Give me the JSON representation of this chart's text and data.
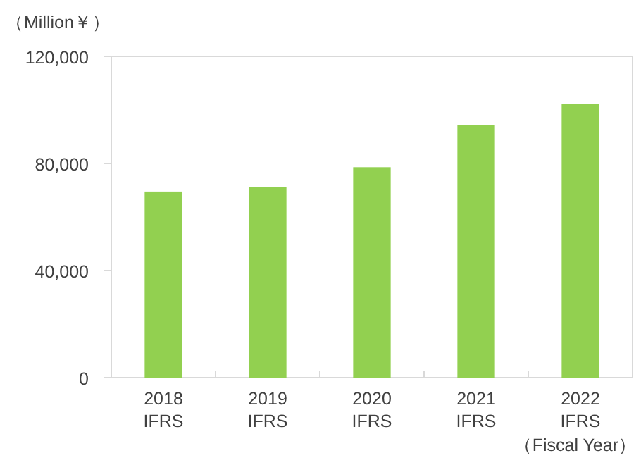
{
  "chart_data": {
    "type": "bar",
    "ylabel": "（Million￥）",
    "xlabel": "（Fiscal Year）",
    "categories": [
      "2018\nIFRS",
      "2019\nIFRS",
      "2020\nIFRS",
      "2021\nIFRS",
      "2022\nIFRS"
    ],
    "values": [
      69500,
      71200,
      78600,
      94400,
      102200
    ],
    "color": "#92d050",
    "ylim": [
      0,
      120000
    ],
    "yticks": [
      {
        "value": 0,
        "label": "0"
      },
      {
        "value": 40000,
        "label": "40,000"
      },
      {
        "value": 80000,
        "label": "80,000"
      },
      {
        "value": 120000,
        "label": "120,000"
      }
    ],
    "grid": false
  }
}
